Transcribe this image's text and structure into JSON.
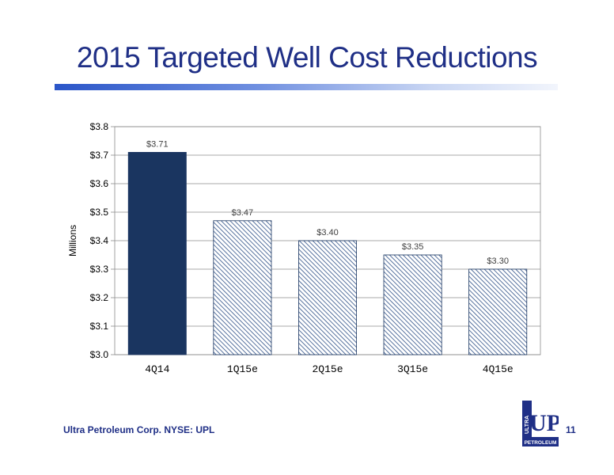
{
  "slide": {
    "title": "2015 Targeted Well Cost Reductions",
    "footer": "Ultra Petroleum Corp. NYSE: UPL",
    "page_number": "11",
    "logo_text": {
      "main": "UP",
      "side": "ULTRA",
      "bottom": "PETROLEUM"
    }
  },
  "colors": {
    "title": "#1f2f86",
    "bar_solid": "#1a3560",
    "bar_hatch": "#2d4f86",
    "rule_start": "#2a55c8"
  },
  "chart_data": {
    "type": "bar",
    "categories": [
      "4Q14",
      "1Q15e",
      "2Q15e",
      "3Q15e",
      "4Q15e"
    ],
    "values": [
      3.71,
      3.47,
      3.4,
      3.35,
      3.3
    ],
    "data_labels": [
      "$3.71",
      "$3.47",
      "$3.40",
      "$3.35",
      "$3.30"
    ],
    "styles": [
      "solid",
      "hatched",
      "hatched",
      "hatched",
      "hatched"
    ],
    "ylabel": "Millions",
    "ylim": [
      3.0,
      3.8
    ],
    "yticks": [
      3.0,
      3.1,
      3.2,
      3.3,
      3.4,
      3.5,
      3.6,
      3.7,
      3.8
    ],
    "ytick_labels": [
      "$3.0",
      "$3.1",
      "$3.2",
      "$3.3",
      "$3.4",
      "$3.5",
      "$3.6",
      "$3.7",
      "$3.8"
    ],
    "grid": true,
    "legend": false
  }
}
